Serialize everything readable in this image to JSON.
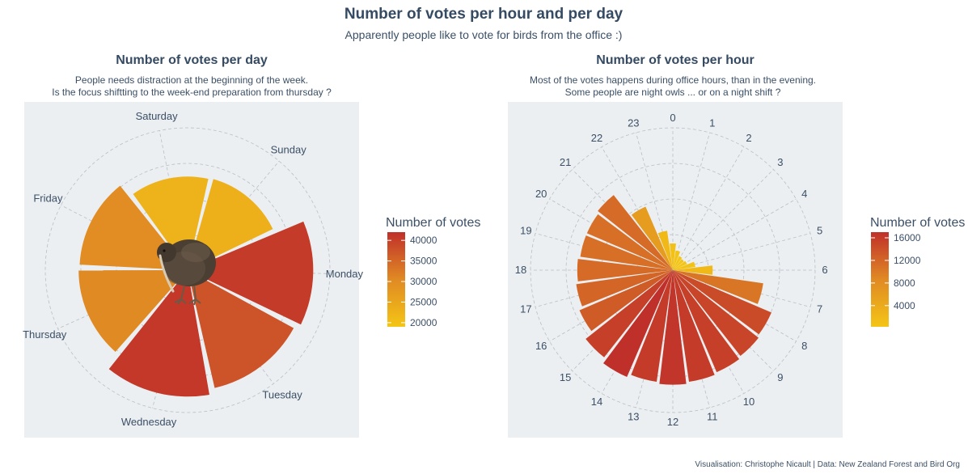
{
  "title": "Number of votes per hour and per day",
  "subtitle": "Apparently people like to vote for birds from the office :)",
  "caption": "Visualisation: Christophe Nicault | Data: New Zealand Forest and Bird Org",
  "colors": {
    "panel_bg": "#eceff1",
    "low": "#f4c515",
    "mid": "#e08a24",
    "high": "#c0302a",
    "text": "#354a63"
  },
  "illustration_icon": "kiwi-bird-illustration",
  "chart_data": [
    {
      "type": "bar",
      "coord": "polar",
      "title": "Number of votes per day",
      "subtitle_lines": [
        "People needs distraction at the beginning of the week.",
        "Is the focus shiftting to the week-end preparation from thursday ?"
      ],
      "categories": [
        "Sunday",
        "Monday",
        "Tuesday",
        "Wednesday",
        "Thursday",
        "Friday",
        "Saturday"
      ],
      "values": [
        23000,
        40500,
        37500,
        41000,
        30500,
        30000,
        22500
      ],
      "rmax": 52000,
      "grid": true,
      "legend": {
        "title": "Number of votes",
        "ticks": [
          40000,
          35000,
          30000,
          25000,
          20000
        ],
        "range": [
          19000,
          42000
        ],
        "placement": "right"
      }
    },
    {
      "type": "bar",
      "coord": "polar",
      "title": "Number of votes per hour",
      "subtitle_lines": [
        "Most of the votes happens during office hours, than in the evening.",
        "Some people are night owls ... or on a night shift ?"
      ],
      "categories": [
        "0",
        "1",
        "2",
        "3",
        "4",
        "5",
        "6",
        "7",
        "8",
        "9",
        "10",
        "11",
        "12",
        "13",
        "14",
        "15",
        "16",
        "17",
        "18",
        "19",
        "20",
        "21",
        "22",
        "23"
      ],
      "values": [
        900,
        500,
        300,
        250,
        300,
        650,
        2000,
        10500,
        14500,
        15000,
        15500,
        16000,
        16500,
        16000,
        17000,
        15500,
        13000,
        12000,
        11500,
        11000,
        11000,
        11500,
        6000,
        2000
      ],
      "rmax": 25500,
      "grid": true,
      "legend": {
        "title": "Number of votes",
        "ticks": [
          16000,
          12000,
          8000,
          4000
        ],
        "range": [
          250,
          17000
        ],
        "placement": "right"
      }
    }
  ]
}
